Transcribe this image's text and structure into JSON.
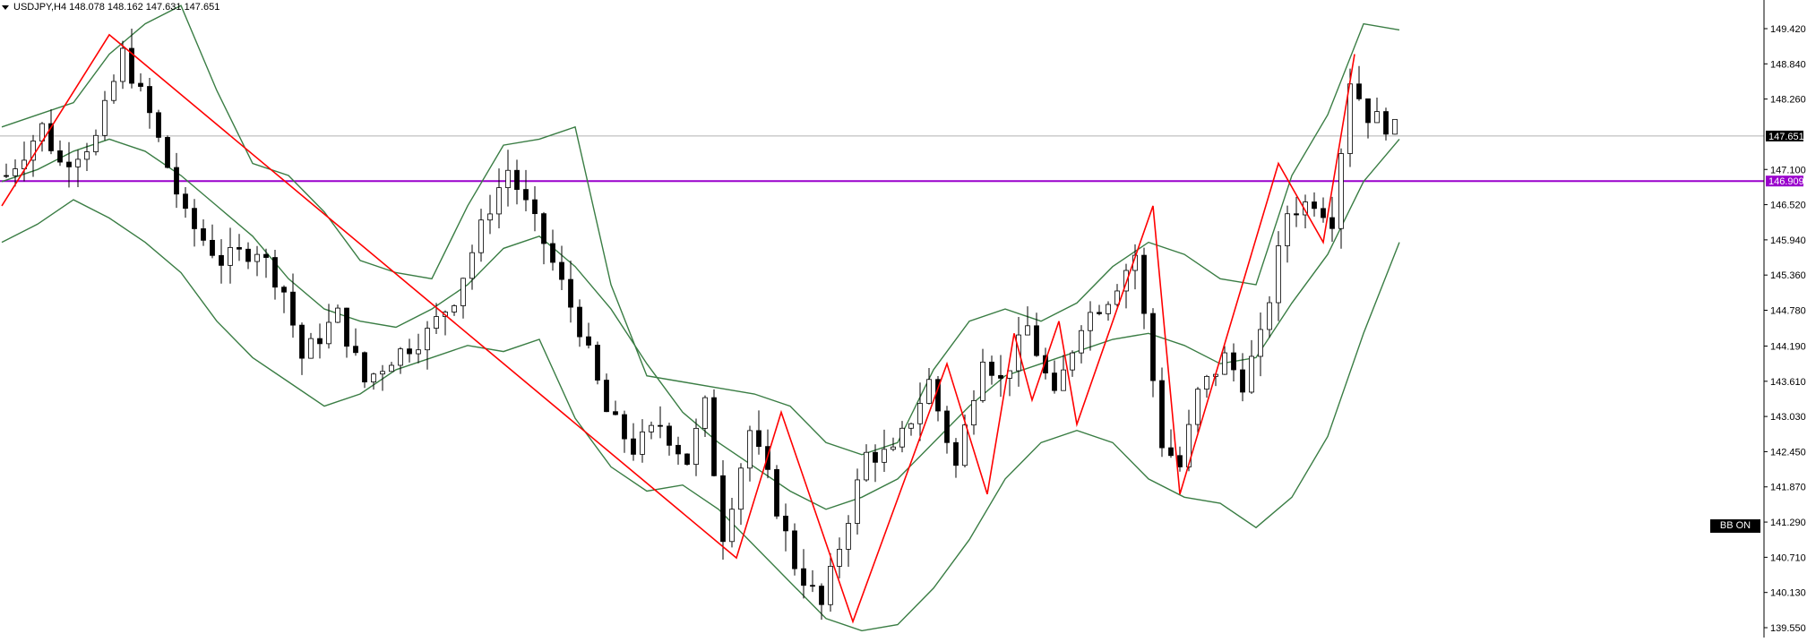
{
  "header": {
    "symbol": "USDJPY,H4",
    "ohlc": "148.078 148.162 147.631 147.651"
  },
  "indicator_badge": "BB ON",
  "colors": {
    "candle_up_body": "#ffffff",
    "candle_down_body": "#000000",
    "bollinger": "#3a7d44",
    "zigzag": "#ff0000",
    "level_line": "#9900cc",
    "price_line": "#b0b0b0"
  },
  "chart_data": {
    "type": "candlestick",
    "symbol": "USDJPY",
    "timeframe": "H4",
    "ylim": [
      139.55,
      149.9
    ],
    "y_ticks": [
      "149.420",
      "148.840",
      "148.260",
      "147.100",
      "146.520",
      "145.940",
      "145.360",
      "144.780",
      "144.190",
      "143.610",
      "143.030",
      "142.450",
      "141.870",
      "141.290",
      "140.710",
      "140.130",
      "139.550"
    ],
    "current_price": {
      "value": 147.651,
      "label": "147.651"
    },
    "horizontal_level": {
      "value": 146.909,
      "label": "146.909"
    },
    "bars_count": 156,
    "close_path": [
      [
        0,
        147.0
      ],
      [
        8,
        147.8
      ],
      [
        12,
        147.2
      ],
      [
        20,
        147.6
      ],
      [
        26,
        149.0
      ],
      [
        32,
        148.0
      ],
      [
        40,
        146.3
      ],
      [
        48,
        145.6
      ],
      [
        56,
        145.8
      ],
      [
        62,
        145.1
      ],
      [
        66,
        144.0
      ],
      [
        74,
        144.7
      ],
      [
        80,
        143.6
      ],
      [
        86,
        144.0
      ],
      [
        94,
        144.4
      ],
      [
        100,
        145.0
      ],
      [
        108,
        146.5
      ],
      [
        112,
        147.1
      ],
      [
        120,
        145.9
      ],
      [
        128,
        144.5
      ],
      [
        134,
        143.1
      ],
      [
        140,
        142.5
      ],
      [
        146,
        142.9
      ],
      [
        152,
        142.3
      ],
      [
        156,
        143.2
      ],
      [
        160,
        141.1
      ],
      [
        166,
        142.8
      ],
      [
        170,
        142.0
      ],
      [
        176,
        140.6
      ],
      [
        182,
        139.9
      ],
      [
        188,
        141.4
      ],
      [
        192,
        142.4
      ],
      [
        198,
        142.4
      ],
      [
        206,
        143.6
      ],
      [
        212,
        142.2
      ],
      [
        218,
        144.1
      ],
      [
        222,
        143.6
      ],
      [
        228,
        144.5
      ],
      [
        234,
        143.3
      ],
      [
        240,
        144.6
      ],
      [
        246,
        145.0
      ],
      [
        252,
        145.7
      ],
      [
        258,
        142.6
      ],
      [
        262,
        142.2
      ],
      [
        266,
        143.4
      ],
      [
        272,
        144.0
      ],
      [
        276,
        143.6
      ],
      [
        280,
        144.3
      ],
      [
        286,
        146.4
      ],
      [
        292,
        146.6
      ],
      [
        296,
        146.3
      ],
      [
        300,
        148.6
      ],
      [
        304,
        148.0
      ],
      [
        308,
        147.85
      ],
      [
        312,
        147.65
      ]
    ],
    "zigzag_points": [
      [
        0,
        146.5
      ],
      [
        24,
        149.32
      ],
      [
        164,
        140.7
      ],
      [
        174,
        143.1
      ],
      [
        190,
        139.65
      ],
      [
        211,
        143.9
      ],
      [
        220,
        141.75
      ],
      [
        226,
        144.4
      ],
      [
        230,
        143.3
      ],
      [
        236,
        144.6
      ],
      [
        240,
        142.9
      ],
      [
        257,
        146.5
      ],
      [
        263,
        141.75
      ],
      [
        285,
        147.2
      ],
      [
        295,
        145.9
      ],
      [
        302,
        149.0
      ]
    ],
    "bollinger_bands": {
      "period_points_x": [
        0,
        8,
        16,
        24,
        32,
        40,
        48,
        56,
        64,
        72,
        80,
        88,
        96,
        104,
        112,
        120,
        128,
        136,
        144,
        152,
        160,
        168,
        176,
        184,
        192,
        200,
        208,
        216,
        224,
        232,
        240,
        248,
        256,
        264,
        272,
        280,
        288,
        296,
        304,
        312
      ],
      "upper": [
        147.8,
        148.0,
        148.2,
        149.0,
        149.5,
        149.8,
        148.4,
        147.2,
        147.0,
        146.4,
        145.6,
        145.4,
        145.3,
        146.5,
        147.5,
        147.6,
        147.8,
        145.2,
        143.7,
        143.6,
        143.5,
        143.4,
        143.2,
        142.6,
        142.4,
        142.6,
        143.8,
        144.6,
        144.8,
        144.6,
        144.9,
        145.5,
        145.9,
        145.7,
        145.3,
        145.2,
        147.0,
        148.0,
        149.5,
        149.4
      ],
      "middle": [
        146.9,
        147.1,
        147.4,
        147.6,
        147.4,
        147.0,
        146.5,
        146.0,
        145.3,
        144.8,
        144.6,
        144.5,
        144.8,
        145.2,
        145.8,
        146.0,
        145.5,
        144.8,
        143.9,
        143.1,
        142.6,
        142.2,
        141.8,
        141.5,
        141.7,
        142.0,
        142.6,
        143.2,
        143.7,
        143.9,
        144.1,
        144.3,
        144.4,
        144.2,
        143.9,
        144.0,
        144.9,
        145.7,
        146.9,
        147.6
      ],
      "lower": [
        145.9,
        146.2,
        146.6,
        146.3,
        145.9,
        145.4,
        144.6,
        144.0,
        143.6,
        143.2,
        143.4,
        143.8,
        144.0,
        144.2,
        144.1,
        144.3,
        143.0,
        142.2,
        141.8,
        141.9,
        141.5,
        140.9,
        140.3,
        139.7,
        139.5,
        139.6,
        140.2,
        141.0,
        142.0,
        142.6,
        142.8,
        142.6,
        142.0,
        141.7,
        141.6,
        141.2,
        141.7,
        142.7,
        144.4,
        145.9
      ]
    },
    "grid": false,
    "legend": "none"
  }
}
